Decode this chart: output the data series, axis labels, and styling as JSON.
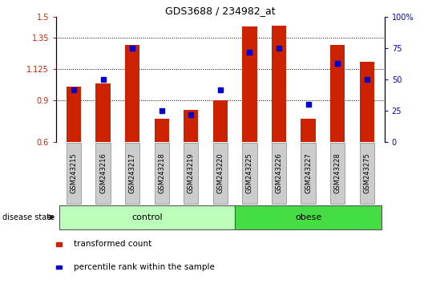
{
  "title": "GDS3688 / 234982_at",
  "samples": [
    "GSM243215",
    "GSM243216",
    "GSM243217",
    "GSM243218",
    "GSM243219",
    "GSM243220",
    "GSM243225",
    "GSM243226",
    "GSM243227",
    "GSM243228",
    "GSM243275"
  ],
  "red_values": [
    1.0,
    1.02,
    1.3,
    0.77,
    0.83,
    0.9,
    1.43,
    1.44,
    0.77,
    1.3,
    1.18
  ],
  "blue_values": [
    42,
    50,
    75,
    25,
    22,
    42,
    72,
    75,
    30,
    63,
    50
  ],
  "ylim_left": [
    0.6,
    1.5
  ],
  "ylim_right": [
    0,
    100
  ],
  "yticks_left": [
    0.6,
    0.9,
    1.125,
    1.35,
    1.5
  ],
  "ytick_labels_left": [
    "0.6",
    "0.9",
    "1.125",
    "1.35",
    "1.5"
  ],
  "yticks_right": [
    0,
    25,
    50,
    75,
    100
  ],
  "ytick_labels_right": [
    "0",
    "25",
    "50",
    "75",
    "100%"
  ],
  "hlines": [
    0.9,
    1.125,
    1.35
  ],
  "n_control": 6,
  "n_obese": 5,
  "bar_color": "#cc2200",
  "dot_color": "#0000cc",
  "bar_width": 0.5,
  "control_color": "#bbffbb",
  "obese_color": "#44dd44",
  "label_box_color": "#cccccc",
  "disease_state_label": "disease state",
  "control_label": "control",
  "obese_label": "obese",
  "legend_red": "transformed count",
  "legend_blue": "percentile rank within the sample"
}
